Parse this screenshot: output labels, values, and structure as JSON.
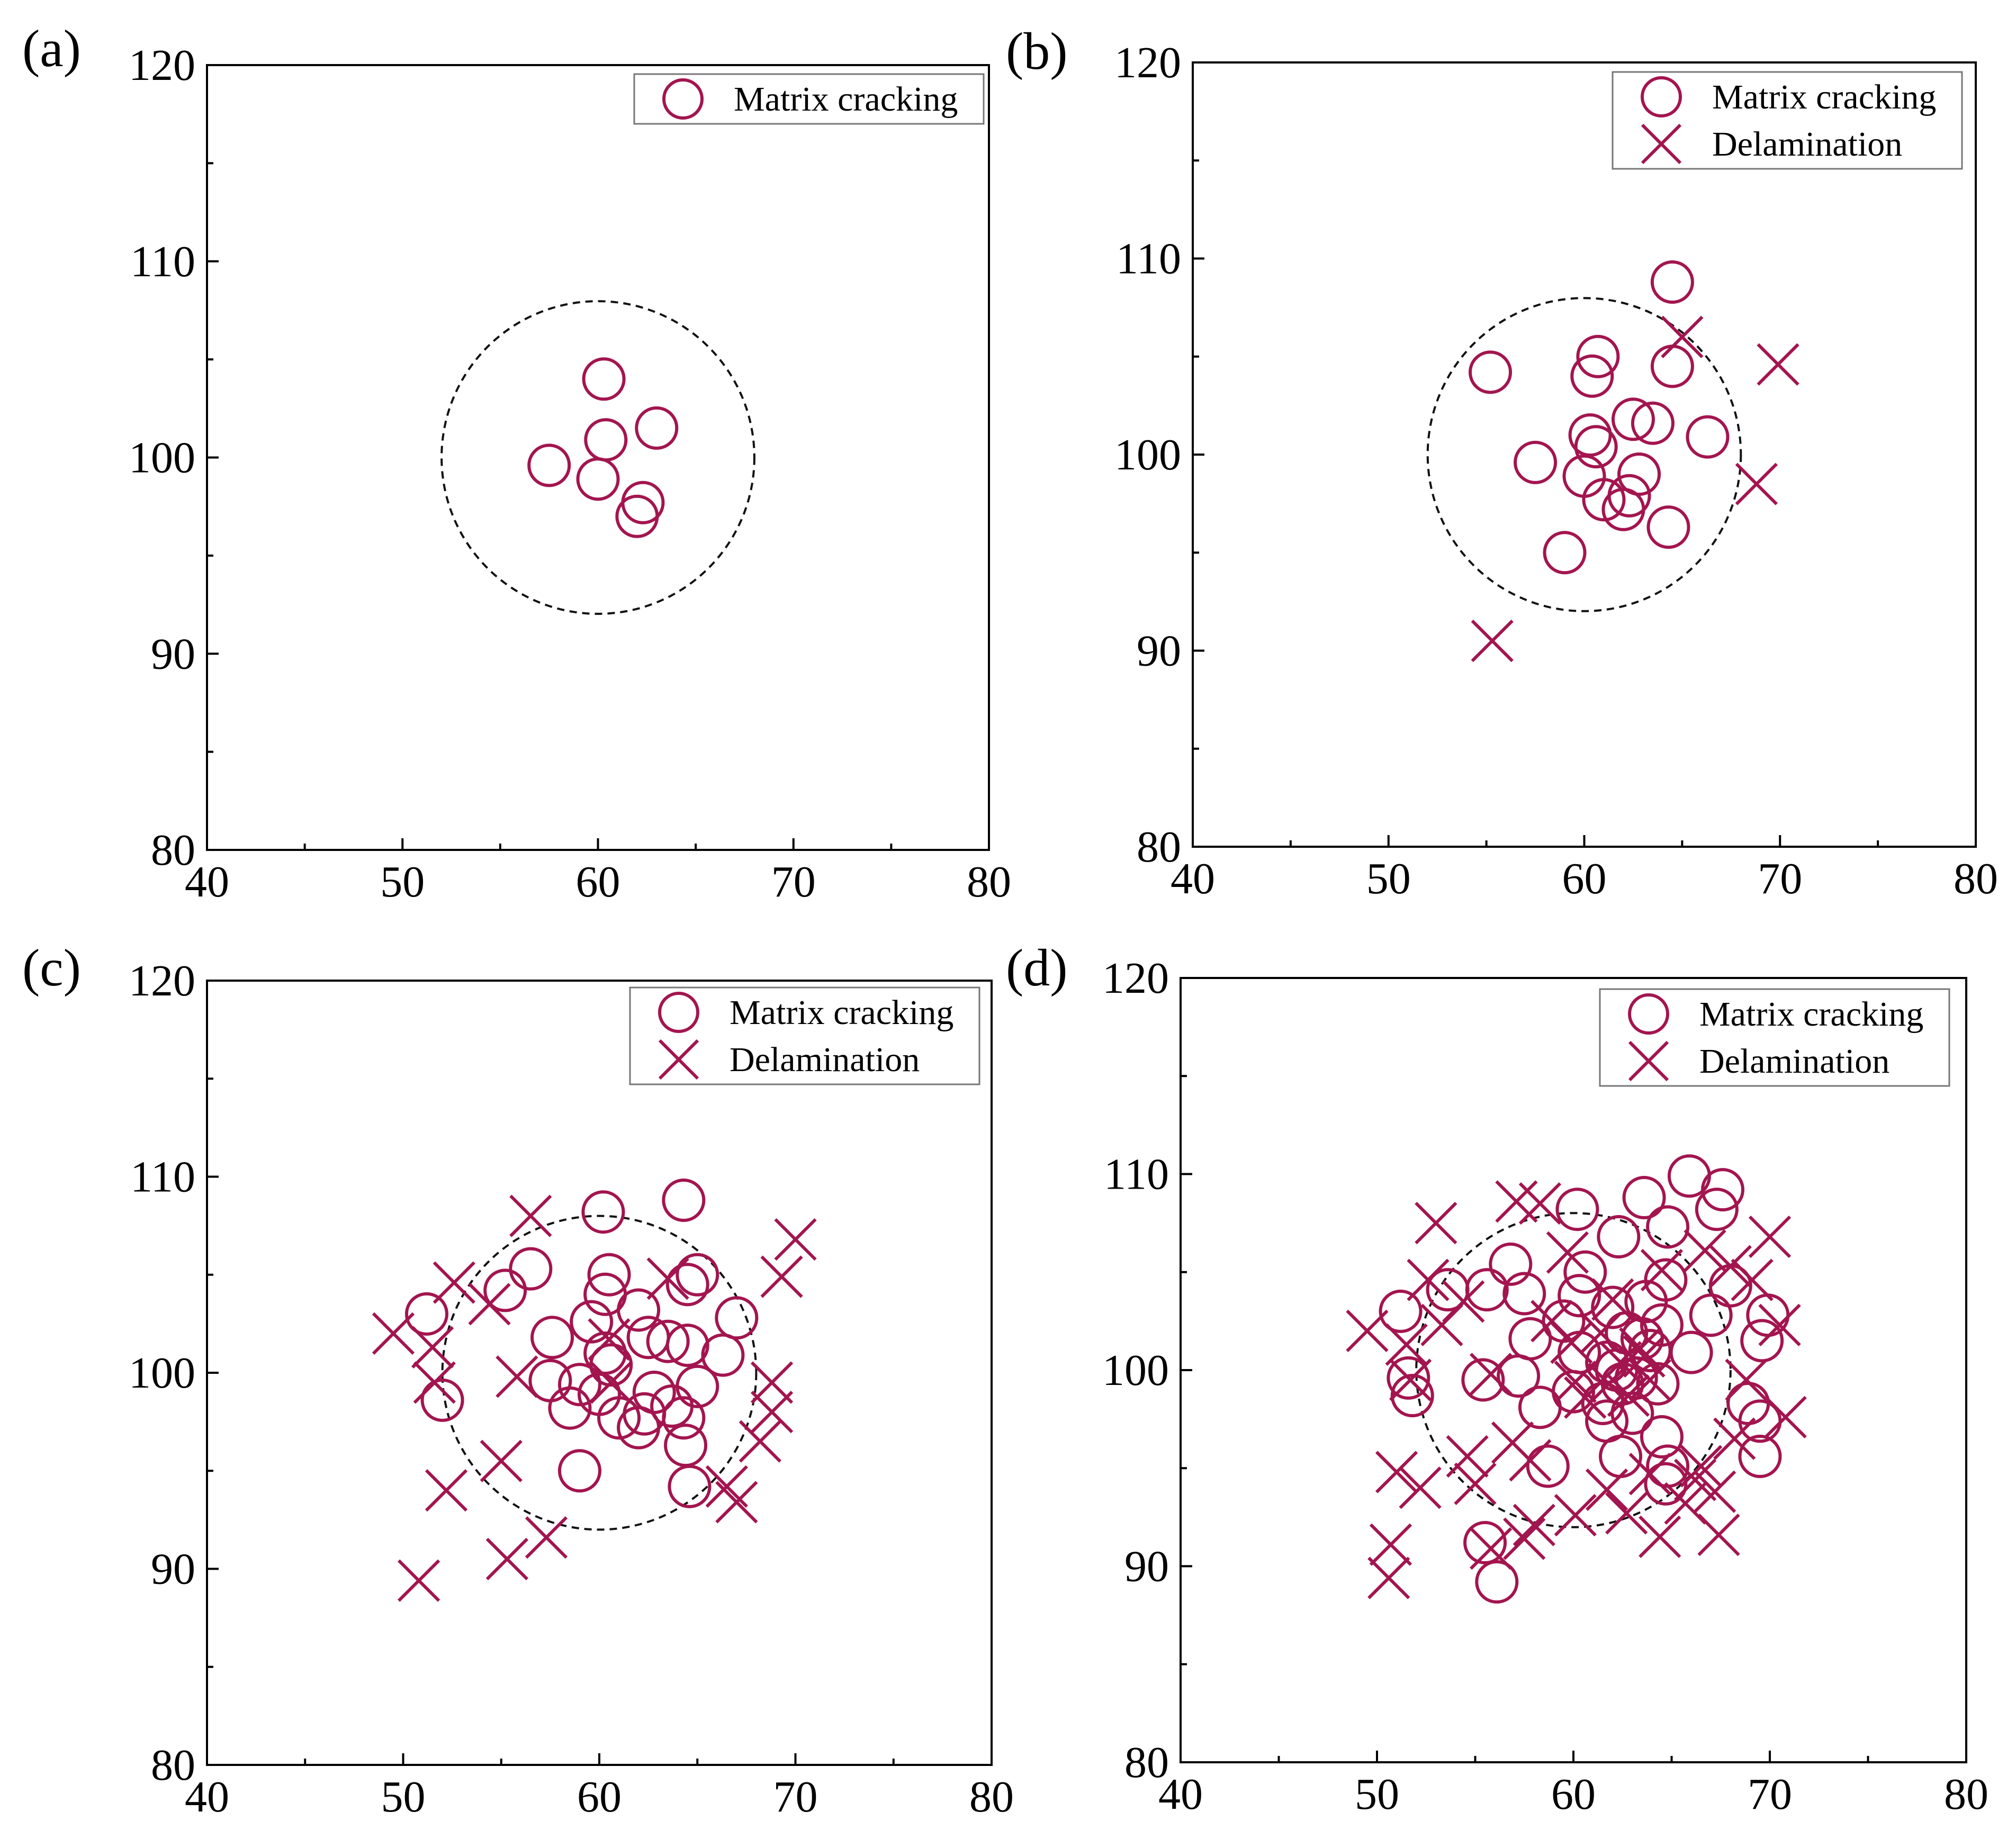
{
  "colors": {
    "marker": "#A3154F",
    "axis": "#000000",
    "ref_circle": "#111111"
  },
  "chart_data": [
    {
      "panel_label": "(a)",
      "type": "scatter",
      "xlim": [
        40,
        80
      ],
      "ylim": [
        80,
        120
      ],
      "x_ticks": [
        40,
        50,
        60,
        70,
        80
      ],
      "y_ticks": [
        80,
        90,
        100,
        110,
        120
      ],
      "reference_circle": {
        "cx": 60,
        "cy": 100,
        "r": 8,
        "style": "dashed"
      },
      "legend": [
        "Matrix cracking"
      ],
      "legend_position": "top-right",
      "series": [
        {
          "name": "Matrix cracking",
          "marker": "circle",
          "points": [
            [
              60.3,
              104
            ],
            [
              63,
              101.5
            ],
            [
              60.4,
              100.9
            ],
            [
              57.5,
              99.6
            ],
            [
              60,
              98.9
            ],
            [
              62.3,
              97.7
            ],
            [
              62,
              97
            ]
          ]
        }
      ]
    },
    {
      "panel_label": "(b)",
      "type": "scatter",
      "xlim": [
        40,
        80
      ],
      "ylim": [
        80,
        120
      ],
      "x_ticks": [
        40,
        50,
        60,
        70,
        80
      ],
      "y_ticks": [
        80,
        90,
        100,
        110,
        120
      ],
      "reference_circle": {
        "cx": 60,
        "cy": 100,
        "r": 8,
        "style": "dashed"
      },
      "legend": [
        "Matrix cracking",
        "Delamination"
      ],
      "legend_position": "top-right",
      "series": [
        {
          "name": "Matrix cracking",
          "marker": "circle",
          "points": [
            [
              64.5,
              108.8
            ],
            [
              60.7,
              105
            ],
            [
              60.4,
              104
            ],
            [
              55.2,
              104.2
            ],
            [
              64.5,
              104.5
            ],
            [
              62.5,
              101.8
            ],
            [
              63.5,
              101.6
            ],
            [
              60.3,
              101
            ],
            [
              60.6,
              100.4
            ],
            [
              66.3,
              100.9
            ],
            [
              57.5,
              99.6
            ],
            [
              62.8,
              99
            ],
            [
              60,
              98.9
            ],
            [
              61,
              97.7
            ],
            [
              62.3,
              97.9
            ],
            [
              62,
              97.2
            ],
            [
              64.3,
              96.3
            ],
            [
              59,
              95
            ]
          ]
        },
        {
          "name": "Delamination",
          "marker": "x",
          "points": [
            [
              65,
              106
            ],
            [
              69.9,
              104.6
            ],
            [
              68.8,
              98.5
            ],
            [
              55.3,
              90.5
            ]
          ]
        }
      ]
    },
    {
      "panel_label": "(c)",
      "type": "scatter",
      "xlim": [
        40,
        80
      ],
      "ylim": [
        80,
        120
      ],
      "x_ticks": [
        40,
        50,
        60,
        70,
        80
      ],
      "y_ticks": [
        80,
        90,
        100,
        110,
        120
      ],
      "reference_circle": {
        "cx": 60,
        "cy": 100,
        "r": 8,
        "style": "dashed"
      },
      "legend": [
        "Matrix cracking",
        "Delamination"
      ],
      "legend_position": "top-right",
      "series": [
        {
          "name": "Matrix cracking",
          "marker": "circle",
          "points": [
            [
              60.2,
              108.2
            ],
            [
              64.3,
              108.8
            ],
            [
              56.5,
              105.3
            ],
            [
              60.5,
              105
            ],
            [
              65,
              105
            ],
            [
              55.2,
              104.2
            ],
            [
              60.3,
              104
            ],
            [
              64.5,
              104.5
            ],
            [
              51.2,
              103
            ],
            [
              62,
              103.2
            ],
            [
              59.6,
              102.6
            ],
            [
              67,
              102.8
            ],
            [
              57.6,
              101.8
            ],
            [
              62.5,
              101.8
            ],
            [
              63.5,
              101.6
            ],
            [
              64.5,
              101.4
            ],
            [
              60.3,
              101
            ],
            [
              60.6,
              100.4
            ],
            [
              66.3,
              100.9
            ],
            [
              57.5,
              99.6
            ],
            [
              59,
              99.4
            ],
            [
              62.8,
              99
            ],
            [
              65,
              99.3
            ],
            [
              60,
              98.9
            ],
            [
              52,
              98.6
            ],
            [
              58.5,
              98.2
            ],
            [
              61,
              97.7
            ],
            [
              63.7,
              98.3
            ],
            [
              62.3,
              97.9
            ],
            [
              62,
              97.2
            ],
            [
              64.3,
              97.7
            ],
            [
              64.4,
              96.3
            ],
            [
              59,
              95
            ],
            [
              64.6,
              94.2
            ]
          ]
        },
        {
          "name": "Delamination",
          "marker": "x",
          "points": [
            [
              56.5,
              108
            ],
            [
              70,
              106.8
            ],
            [
              52.6,
              104.6
            ],
            [
              69.3,
              104.9
            ],
            [
              54.4,
              103.5
            ],
            [
              63.5,
              104.8
            ],
            [
              49.5,
              102
            ],
            [
              51.5,
              101.3
            ],
            [
              60.5,
              101.7
            ],
            [
              51.6,
              99.5
            ],
            [
              55.8,
              99.8
            ],
            [
              60.6,
              99.5
            ],
            [
              68.8,
              99.5
            ],
            [
              68.8,
              98
            ],
            [
              68.2,
              96.5
            ],
            [
              55,
              95.5
            ],
            [
              52.2,
              94
            ],
            [
              66.5,
              94.2
            ],
            [
              67,
              93.4
            ],
            [
              57.3,
              91.6
            ],
            [
              55.3,
              90.5
            ],
            [
              50.8,
              89.4
            ]
          ]
        }
      ]
    },
    {
      "panel_label": "(d)",
      "type": "scatter",
      "xlim": [
        40,
        80
      ],
      "ylim": [
        80,
        120
      ],
      "x_ticks": [
        40,
        50,
        60,
        70,
        80
      ],
      "y_ticks": [
        80,
        90,
        100,
        110,
        120
      ],
      "reference_circle": {
        "cx": 60,
        "cy": 100,
        "r": 8,
        "style": "dashed"
      },
      "legend": [
        "Matrix cracking",
        "Delamination"
      ],
      "legend_position": "top-right",
      "series": [
        {
          "name": "Matrix cracking",
          "marker": "circle",
          "points": [
            [
              65.9,
              109.9
            ],
            [
              67.6,
              109.2
            ],
            [
              63.6,
              108.8
            ],
            [
              60.2,
              108.2
            ],
            [
              67.3,
              108.2
            ],
            [
              64.8,
              107.3
            ],
            [
              62.3,
              106.8
            ],
            [
              56.8,
              105.4
            ],
            [
              60.6,
              105
            ],
            [
              64.7,
              104.6
            ],
            [
              68,
              104.3
            ],
            [
              53.6,
              104.1
            ],
            [
              55.6,
              104.1
            ],
            [
              57.5,
              103.9
            ],
            [
              60.3,
              103.8
            ],
            [
              63.7,
              103.5
            ],
            [
              51.2,
              103
            ],
            [
              62,
              103.2
            ],
            [
              67,
              102.8
            ],
            [
              69.9,
              102.8
            ],
            [
              64.5,
              102.3
            ],
            [
              59.5,
              102.5
            ],
            [
              62.7,
              101.9
            ],
            [
              63.5,
              101.6
            ],
            [
              57.8,
              101.6
            ],
            [
              69.6,
              101.5
            ],
            [
              63.9,
              101
            ],
            [
              66,
              100.9
            ],
            [
              60.3,
              100.9
            ],
            [
              61.7,
              100.4
            ],
            [
              62.2,
              100
            ],
            [
              63.2,
              99.6
            ],
            [
              57.2,
              99.7
            ],
            [
              51.6,
              99.6
            ],
            [
              55.4,
              99.5
            ],
            [
              62.5,
              99.3
            ],
            [
              64.3,
              99.3
            ],
            [
              60,
              98.9
            ],
            [
              51.8,
              98.7
            ],
            [
              61.5,
              98.3
            ],
            [
              68.9,
              98.3
            ],
            [
              58.3,
              98.1
            ],
            [
              63,
              97.8
            ],
            [
              61.7,
              97.4
            ],
            [
              69.5,
              97.4
            ],
            [
              64.5,
              96.6
            ],
            [
              62.4,
              95.6
            ],
            [
              69.5,
              95.6
            ],
            [
              58.7,
              95.1
            ],
            [
              64.8,
              95.1
            ],
            [
              64.7,
              94.2
            ],
            [
              55.5,
              91.2
            ],
            [
              56.1,
              89.2
            ]
          ]
        },
        {
          "name": "Delamination",
          "marker": "x",
          "points": [
            [
              57.1,
              108.6
            ],
            [
              58.3,
              108.5
            ],
            [
              53,
              107.5
            ],
            [
              70,
              106.8
            ],
            [
              66.7,
              106.1
            ],
            [
              59.7,
              106
            ],
            [
              68,
              105.3
            ],
            [
              52.6,
              104.6
            ],
            [
              64.5,
              105.1
            ],
            [
              69.1,
              104.6
            ],
            [
              54.4,
              103.5
            ],
            [
              62,
              103.6
            ],
            [
              49.5,
              102
            ],
            [
              53.3,
              102.3
            ],
            [
              58.9,
              102.5
            ],
            [
              70.5,
              102.3
            ],
            [
              61.4,
              101.9
            ],
            [
              63.4,
              101.1
            ],
            [
              51.5,
              101.3
            ],
            [
              59.9,
              101.4
            ],
            [
              62.4,
              100.4
            ],
            [
              63.6,
              100.7
            ],
            [
              51.7,
              99.5
            ],
            [
              55.8,
              99.8
            ],
            [
              60.1,
              99.4
            ],
            [
              61.8,
              99.3
            ],
            [
              63.9,
              99.5
            ],
            [
              60.6,
              98.6
            ],
            [
              62.8,
              98.7
            ],
            [
              68.8,
              99.5
            ],
            [
              70.8,
              97.6
            ],
            [
              68.2,
              96.5
            ],
            [
              56.9,
              96.3
            ],
            [
              54.6,
              95.6
            ],
            [
              57.8,
              95.4
            ],
            [
              66.5,
              95.1
            ],
            [
              63.9,
              94.7
            ],
            [
              61.7,
              93.9
            ],
            [
              51,
              94.8
            ],
            [
              52.2,
              94
            ],
            [
              55,
              94.2
            ],
            [
              66.2,
              94.4
            ],
            [
              67.2,
              93.8
            ],
            [
              65.7,
              93.2
            ],
            [
              60.1,
              92.6
            ],
            [
              62.7,
              92.7
            ],
            [
              58,
              92.1
            ],
            [
              57.5,
              91.4
            ],
            [
              67.4,
              91.6
            ],
            [
              64.4,
              91.5
            ],
            [
              50.7,
              91.1
            ],
            [
              55.8,
              90.9
            ],
            [
              50.6,
              89.4
            ]
          ]
        }
      ]
    }
  ]
}
